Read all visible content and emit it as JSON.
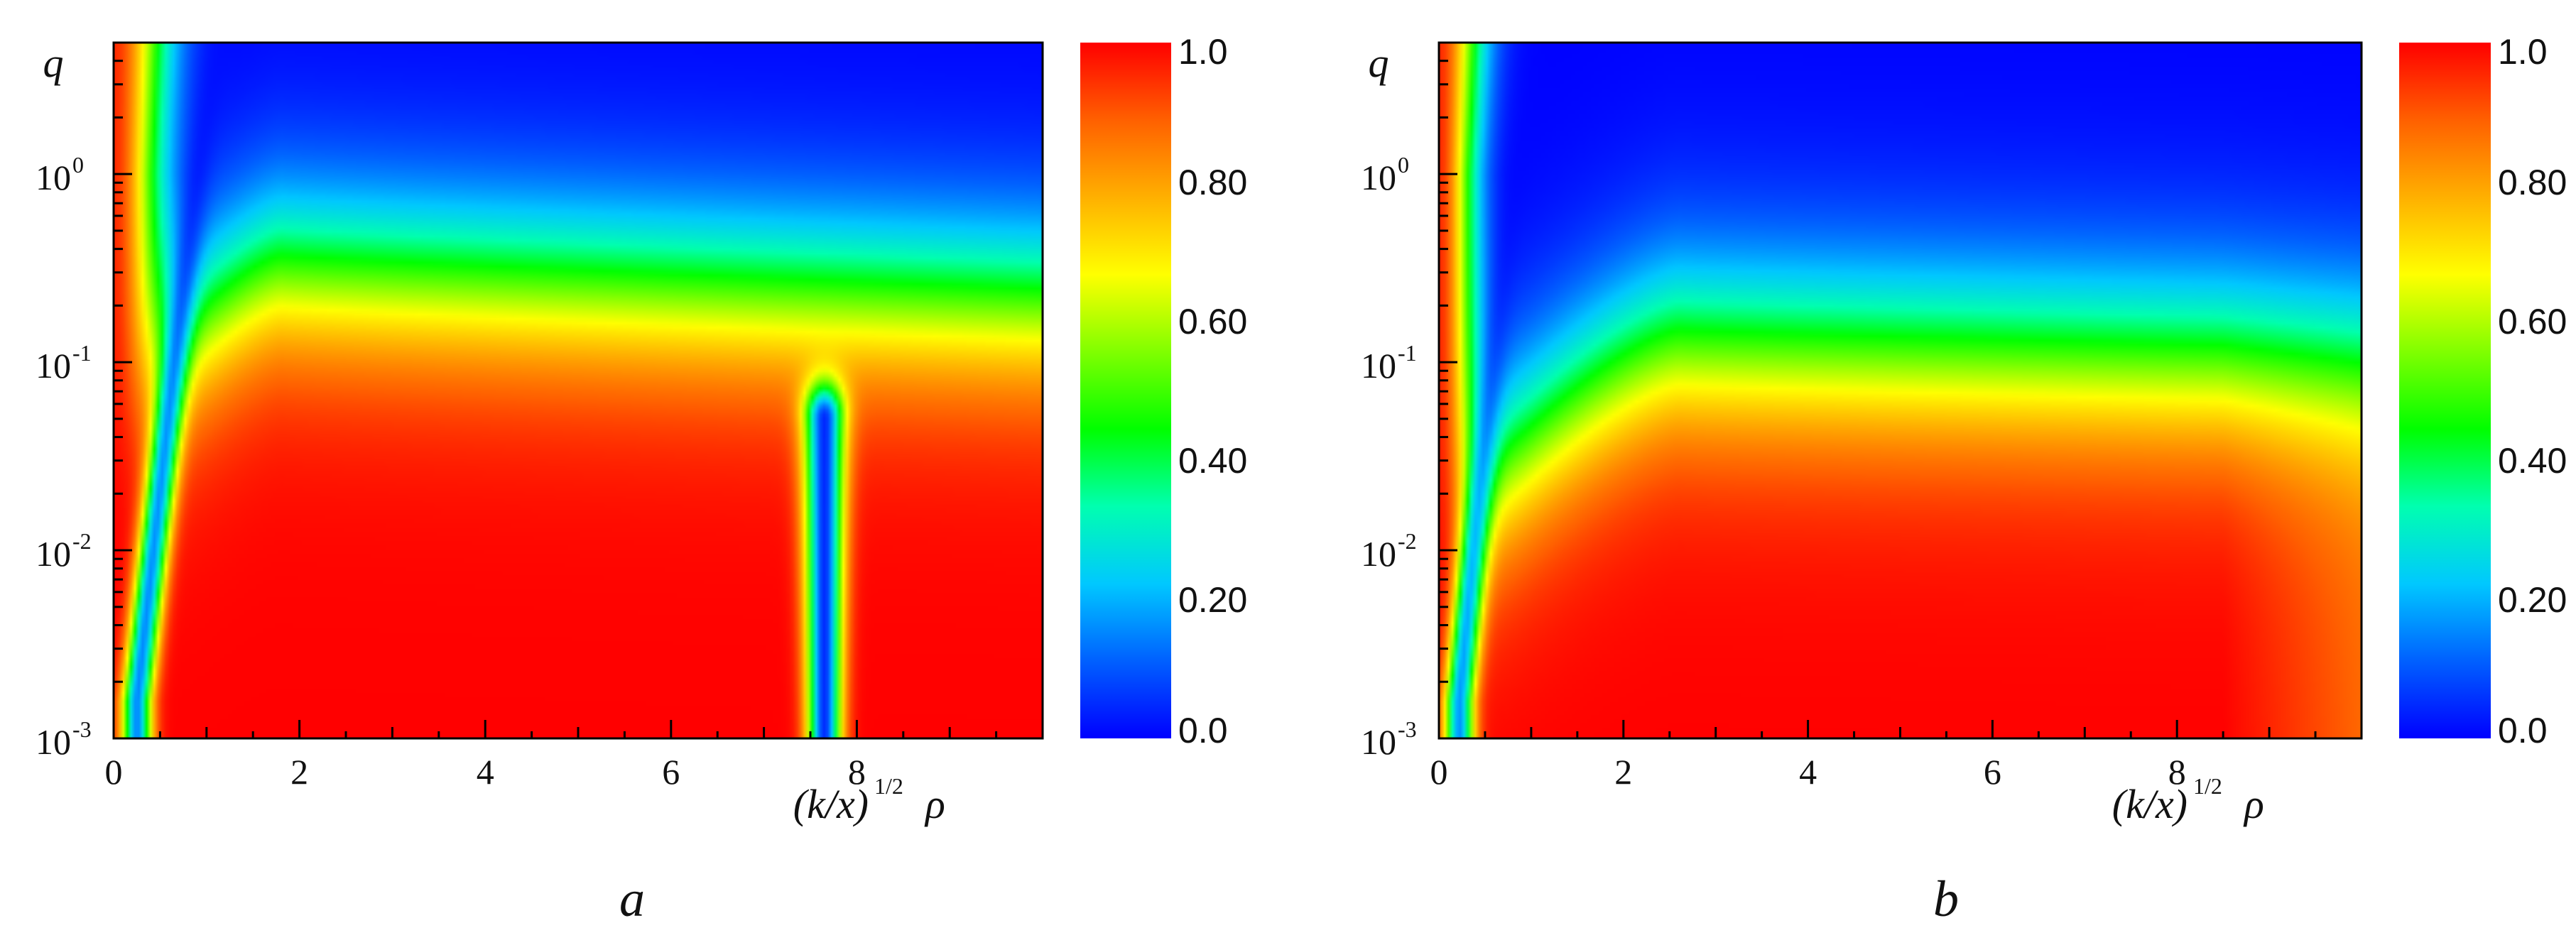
{
  "colormap": [
    "#0000ff",
    "#0060ff",
    "#00c8ff",
    "#00ffb0",
    "#00ff00",
    "#80ff00",
    "#ffff00",
    "#ffb000",
    "#ff6000",
    "#ff0000"
  ],
  "chart_data": [
    {
      "type": "heatmap",
      "panel": "a",
      "caption": "a",
      "xlabel": "(k/x)^1/2 ρ",
      "xlabel_base": "(k/x)",
      "xlabel_exp": "1/2",
      "xlabel_var": "ρ",
      "ylabel": "q",
      "y_scale": "log",
      "xlim": [
        0,
        10
      ],
      "ylim": [
        0.001,
        5
      ],
      "x_ticks": [
        "0",
        "2",
        "4",
        "6",
        "8"
      ],
      "x_tick_values": [
        0,
        2,
        4,
        6,
        8
      ],
      "y_ticks": [
        {
          "base": "10",
          "exp": "0"
        },
        {
          "base": "10",
          "exp": "-1"
        },
        {
          "base": "10",
          "exp": "-2"
        },
        {
          "base": "10",
          "exp": "-3"
        }
      ],
      "y_tick_values": [
        1,
        0.1,
        0.01,
        0.001
      ],
      "colorbar": {
        "range": [
          0.0,
          1.0
        ],
        "labels": [
          "1.0",
          "0.80",
          "0.60",
          "0.40",
          "0.20",
          "0.0"
        ],
        "values": [
          1.0,
          0.8,
          0.6,
          0.4,
          0.2,
          0.0
        ]
      },
      "features": {
        "resonance_x": 7.65,
        "ridge_peak_x": 1.8,
        "ridge_peak_q": 0.3
      }
    },
    {
      "type": "heatmap",
      "panel": "b",
      "caption": "b",
      "xlabel": "(k/x)^1/2 ρ",
      "xlabel_base": "(k/x)",
      "xlabel_exp": "1/2",
      "xlabel_var": "ρ",
      "ylabel": "q",
      "y_scale": "log",
      "xlim": [
        0,
        10
      ],
      "ylim": [
        0.001,
        5
      ],
      "x_ticks": [
        "0",
        "2",
        "4",
        "6",
        "8"
      ],
      "x_tick_values": [
        0,
        2,
        4,
        6,
        8
      ],
      "y_ticks": [
        {
          "base": "10",
          "exp": "0"
        },
        {
          "base": "10",
          "exp": "-1"
        },
        {
          "base": "10",
          "exp": "-2"
        },
        {
          "base": "10",
          "exp": "-3"
        }
      ],
      "y_tick_values": [
        1,
        0.1,
        0.01,
        0.001
      ],
      "colorbar": {
        "range": [
          0.0,
          1.0
        ],
        "labels": [
          "1.0",
          "0.80",
          "0.60",
          "0.40",
          "0.20",
          "0.0"
        ],
        "values": [
          1.0,
          0.8,
          0.6,
          0.4,
          0.2,
          0.0
        ]
      },
      "features": {
        "resonance_x": null,
        "ridge_peak_x": 2.6,
        "ridge_peak_q": 0.13
      }
    }
  ]
}
